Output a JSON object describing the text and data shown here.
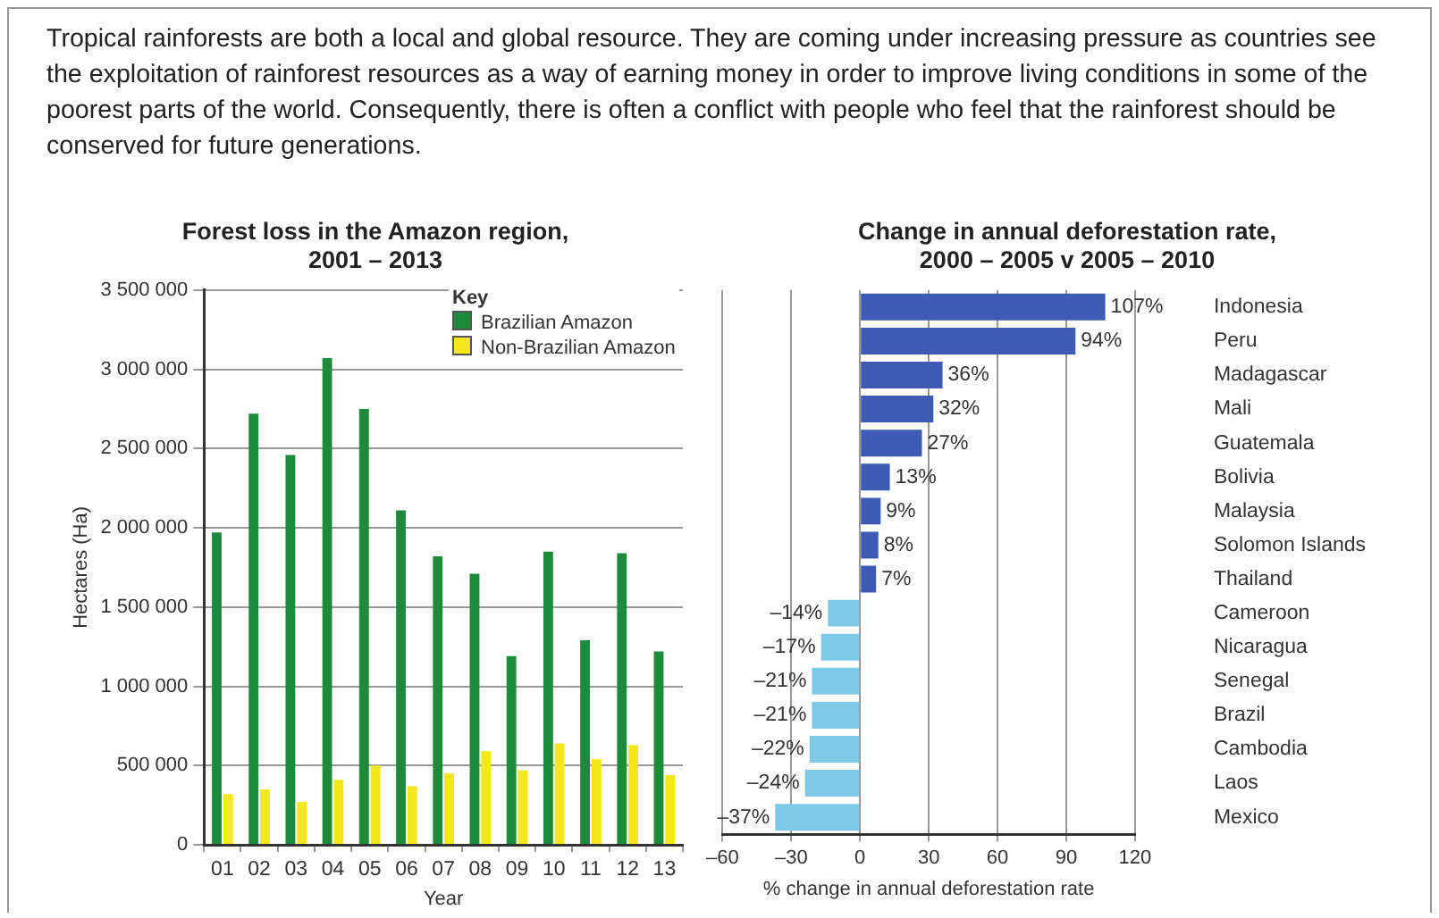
{
  "chart_data": [
    {
      "type": "other",
      "annotations": [
        "Tropical rainforests are both a local and global resource. They are coming under increasing pressure as countries see the exploitation of rainforest resources as a way of earning money in order to improve living conditions in some of the poorest parts of the world. Consequently, there is often a conflict with people who feel that the rainforest should be conserved for future generations."
      ]
    },
    {
      "type": "bar",
      "title": "Forest loss in the Amazon region,\n2001 – 2013",
      "xlabel": "Year",
      "ylabel": "Hectares (Ha)",
      "legend_title": "Key",
      "legend": "top right",
      "grid": "y",
      "categories": [
        "01",
        "02",
        "03",
        "04",
        "05",
        "06",
        "07",
        "08",
        "09",
        "10",
        "11",
        "12",
        "13"
      ],
      "series": [
        {
          "name": "Brazilian Amazon",
          "color": "#1e8a3c",
          "values": [
            1970000,
            2720000,
            2460000,
            3070000,
            2750000,
            2110000,
            1820000,
            1710000,
            1190000,
            1850000,
            1290000,
            1840000,
            1220000
          ]
        },
        {
          "name": "Non-Brazilian Amazon",
          "color": "#f2e81c",
          "values": [
            320000,
            350000,
            270000,
            410000,
            500000,
            370000,
            450000,
            590000,
            470000,
            640000,
            540000,
            630000,
            440000
          ]
        }
      ],
      "ylim": [
        0,
        3500000
      ],
      "yticks": [
        0,
        {
          "value": 500000,
          "label": "500 000"
        },
        {
          "value": 1000000,
          "label": "1 000 000"
        },
        {
          "value": 1500000,
          "label": "1 500 000"
        },
        {
          "value": 2000000,
          "label": "2 000 000"
        },
        {
          "value": 2500000,
          "label": "2 500 000"
        },
        {
          "value": 3000000,
          "label": "3 000 000"
        },
        {
          "value": 3500000,
          "label": "3 500 000"
        }
      ]
    },
    {
      "type": "bar",
      "orientation": "horizontal",
      "title": "Change in annual deforestation rate,\n2000 – 2005 v 2005 – 2010",
      "xlabel": "% change in annual deforestation rate",
      "grid": "x",
      "categories": [
        "Indonesia",
        "Peru",
        "Madagascar",
        "Mali",
        "Guatemala",
        "Bolivia",
        "Malaysia",
        "Solomon Islands",
        "Thailand",
        "Cameroon",
        "Nicaragua",
        "Senegal",
        "Brazil",
        "Cambodia",
        "Laos",
        "Mexico"
      ],
      "values": [
        107,
        94,
        36,
        32,
        27,
        13,
        9,
        8,
        7,
        -14,
        -17,
        -21,
        -21,
        -22,
        -24,
        -37
      ],
      "colors": [
        "#3d5bb5",
        "#3d5bb5",
        "#3d5bb5",
        "#3d5bb5",
        "#3d5bb5",
        "#3d5bb5",
        "#3d5bb5",
        "#3d5bb5",
        "#3d5bb5",
        "#7ec8e8",
        "#7ec8e8",
        "#7ec8e8",
        "#7ec8e8",
        "#7ec8e8",
        "#7ec8e8",
        "#7ec8e8"
      ],
      "value_labels": [
        "107%",
        "94%",
        "36%",
        "32%",
        "27%",
        "13%",
        "9%",
        "8%",
        "7%",
        "–14%",
        "–17%",
        "–21%",
        "–21%",
        "–22%",
        "–24%",
        "–37%"
      ],
      "xlim": [
        -60,
        120
      ],
      "xticks": [
        {
          "value": -60,
          "label": "–60"
        },
        {
          "value": -30,
          "label": "–30"
        },
        0,
        30,
        60,
        90,
        120
      ]
    }
  ]
}
